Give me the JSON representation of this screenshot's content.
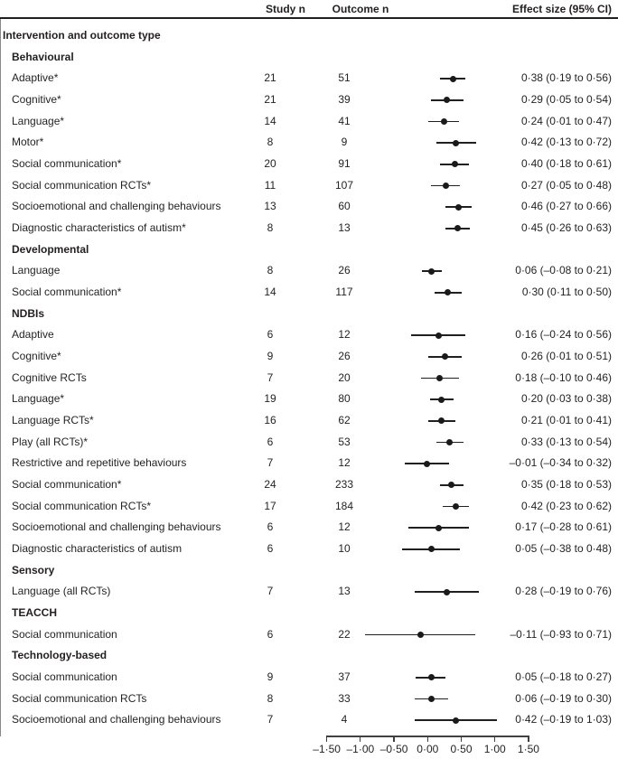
{
  "header": {
    "study_n": "Study n",
    "outcome_n": "Outcome n",
    "effect_size": "Effect size (95% CI)"
  },
  "chart_data": {
    "type": "scatter",
    "subtype": "forest-plot",
    "title": "",
    "xlabel": "",
    "xlim": [
      -1.5,
      1.5
    ],
    "zero_reference": 0,
    "grid": false,
    "axis_ticks": [
      {
        "value": -1.5,
        "label": "–1·50"
      },
      {
        "value": -1.0,
        "label": "–1·00"
      },
      {
        "value": -0.5,
        "label": "–0·50"
      },
      {
        "value": 0.0,
        "label": "0·00"
      },
      {
        "value": 0.5,
        "label": "0·50"
      },
      {
        "value": 1.0,
        "label": "1·00"
      },
      {
        "value": 1.5,
        "label": "1·50"
      }
    ],
    "colors": {
      "text": "#231f20",
      "marker": "#1a1a1a",
      "ci_line": "#231f20",
      "zero_line": "#87888a"
    },
    "rows": [
      {
        "label": "Intervention and outcome type",
        "bold": true,
        "indent": 0
      },
      {
        "label": "Behavioural",
        "bold": true,
        "indent": 1
      },
      {
        "label": "Adaptive*",
        "indent": 1,
        "study_n": "21",
        "outcome_n": "51",
        "est": 0.38,
        "lo": 0.19,
        "hi": 0.56,
        "text": "0·38 (0·19 to 0·56)"
      },
      {
        "label": "Cognitive*",
        "indent": 1,
        "study_n": "21",
        "outcome_n": "39",
        "est": 0.29,
        "lo": 0.05,
        "hi": 0.54,
        "text": "0·29 (0·05 to 0·54)"
      },
      {
        "label": "Language*",
        "indent": 1,
        "study_n": "14",
        "outcome_n": "41",
        "est": 0.24,
        "lo": 0.01,
        "hi": 0.47,
        "text": "0·24 (0·01 to 0·47)"
      },
      {
        "label": "Motor*",
        "indent": 1,
        "study_n": "8",
        "outcome_n": "9",
        "est": 0.42,
        "lo": 0.13,
        "hi": 0.72,
        "text": "0·42 (0·13 to 0·72)"
      },
      {
        "label": "Social communication*",
        "indent": 1,
        "study_n": "20",
        "outcome_n": "91",
        "est": 0.4,
        "lo": 0.18,
        "hi": 0.61,
        "text": "0·40 (0·18 to 0·61)"
      },
      {
        "label": "Social communication RCTs*",
        "indent": 1,
        "study_n": "11",
        "outcome_n": "107",
        "est": 0.27,
        "lo": 0.05,
        "hi": 0.48,
        "text": "0·27 (0·05 to 0·48)"
      },
      {
        "label": "Socioemotional and challenging behaviours",
        "indent": 1,
        "study_n": "13",
        "outcome_n": "60",
        "est": 0.46,
        "lo": 0.27,
        "hi": 0.66,
        "text": "0·46 (0·27 to 0·66)"
      },
      {
        "label": "Diagnostic characteristics of autism*",
        "indent": 1,
        "study_n": "8",
        "outcome_n": "13",
        "est": 0.45,
        "lo": 0.26,
        "hi": 0.63,
        "text": "0·45 (0·26 to 0·63)"
      },
      {
        "label": "Developmental",
        "bold": true,
        "indent": 1
      },
      {
        "label": "Language",
        "indent": 1,
        "study_n": "8",
        "outcome_n": "26",
        "est": 0.06,
        "lo": -0.08,
        "hi": 0.21,
        "text": "0·06 (–0·08 to 0·21)"
      },
      {
        "label": "Social communication*",
        "indent": 1,
        "study_n": "14",
        "outcome_n": "117",
        "est": 0.3,
        "lo": 0.11,
        "hi": 0.5,
        "text": "0·30 (0·11 to 0·50)"
      },
      {
        "label": "NDBIs",
        "bold": true,
        "indent": 1
      },
      {
        "label": "Adaptive",
        "indent": 1,
        "study_n": "6",
        "outcome_n": "12",
        "est": 0.16,
        "lo": -0.24,
        "hi": 0.56,
        "text": "0·16 (–0·24 to 0·56)"
      },
      {
        "label": "Cognitive*",
        "indent": 1,
        "study_n": "9",
        "outcome_n": "26",
        "est": 0.26,
        "lo": 0.01,
        "hi": 0.51,
        "text": "0·26 (0·01 to 0·51)"
      },
      {
        "label": "Cognitive RCTs",
        "indent": 1,
        "study_n": "7",
        "outcome_n": "20",
        "est": 0.18,
        "lo": -0.1,
        "hi": 0.46,
        "text": "0·18 (–0·10 to 0·46)"
      },
      {
        "label": "Language*",
        "indent": 1,
        "study_n": "19",
        "outcome_n": "80",
        "est": 0.2,
        "lo": 0.03,
        "hi": 0.38,
        "text": "0·20 (0·03 to 0·38)"
      },
      {
        "label": "Language RCTs*",
        "indent": 1,
        "study_n": "16",
        "outcome_n": "62",
        "est": 0.21,
        "lo": 0.01,
        "hi": 0.41,
        "text": "0·21 (0·01 to 0·41)"
      },
      {
        "label": "Play (all RCTs)*",
        "indent": 1,
        "study_n": "6",
        "outcome_n": "53",
        "est": 0.33,
        "lo": 0.13,
        "hi": 0.54,
        "text": "0·33 (0·13 to 0·54)"
      },
      {
        "label": "Restrictive and repetitive behaviours",
        "indent": 1,
        "study_n": "7",
        "outcome_n": "12",
        "est": -0.01,
        "lo": -0.34,
        "hi": 0.32,
        "text": "–0·01 (–0·34 to 0·32)"
      },
      {
        "label": "Social communication*",
        "indent": 1,
        "study_n": "24",
        "outcome_n": "233",
        "est": 0.35,
        "lo": 0.18,
        "hi": 0.53,
        "text": "0·35 (0·18 to 0·53)"
      },
      {
        "label": "Social communication RCTs*",
        "indent": 1,
        "study_n": "17",
        "outcome_n": "184",
        "est": 0.42,
        "lo": 0.23,
        "hi": 0.62,
        "text": "0·42 (0·23 to 0·62)"
      },
      {
        "label": "Socioemotional and challenging behaviours",
        "indent": 1,
        "study_n": "6",
        "outcome_n": "12",
        "est": 0.17,
        "lo": -0.28,
        "hi": 0.61,
        "text": "0·17 (–0·28 to 0·61)"
      },
      {
        "label": "Diagnostic characteristics of autism",
        "indent": 1,
        "study_n": "6",
        "outcome_n": "10",
        "est": 0.05,
        "lo": -0.38,
        "hi": 0.48,
        "text": "0·05 (–0·38 to 0·48)"
      },
      {
        "label": "Sensory",
        "bold": true,
        "indent": 1
      },
      {
        "label": "Language (all RCTs)",
        "indent": 1,
        "study_n": "7",
        "outcome_n": "13",
        "est": 0.28,
        "lo": -0.19,
        "hi": 0.76,
        "text": "0·28 (–0·19 to 0·76)"
      },
      {
        "label": "TEACCH",
        "bold": true,
        "indent": 1
      },
      {
        "label": "Social communication",
        "indent": 1,
        "study_n": "6",
        "outcome_n": "22",
        "est": -0.11,
        "lo": -0.93,
        "hi": 0.71,
        "text": "–0·11 (–0·93 to 0·71)"
      },
      {
        "label": "Technology-based",
        "bold": true,
        "indent": 1
      },
      {
        "label": "Social communication",
        "indent": 1,
        "study_n": "9",
        "outcome_n": "37",
        "est": 0.05,
        "lo": -0.18,
        "hi": 0.27,
        "text": "0·05 (–0·18 to 0·27)"
      },
      {
        "label": "Social communication RCTs",
        "indent": 1,
        "study_n": "8",
        "outcome_n": "33",
        "est": 0.06,
        "lo": -0.19,
        "hi": 0.3,
        "text": "0·06 (–0·19 to 0·30)"
      },
      {
        "label": "Socioemotional and challenging behaviours",
        "indent": 1,
        "study_n": "7",
        "outcome_n": "4",
        "est": 0.42,
        "lo": -0.19,
        "hi": 1.03,
        "text": "0·42 (–0·19 to 1·03)"
      }
    ]
  }
}
